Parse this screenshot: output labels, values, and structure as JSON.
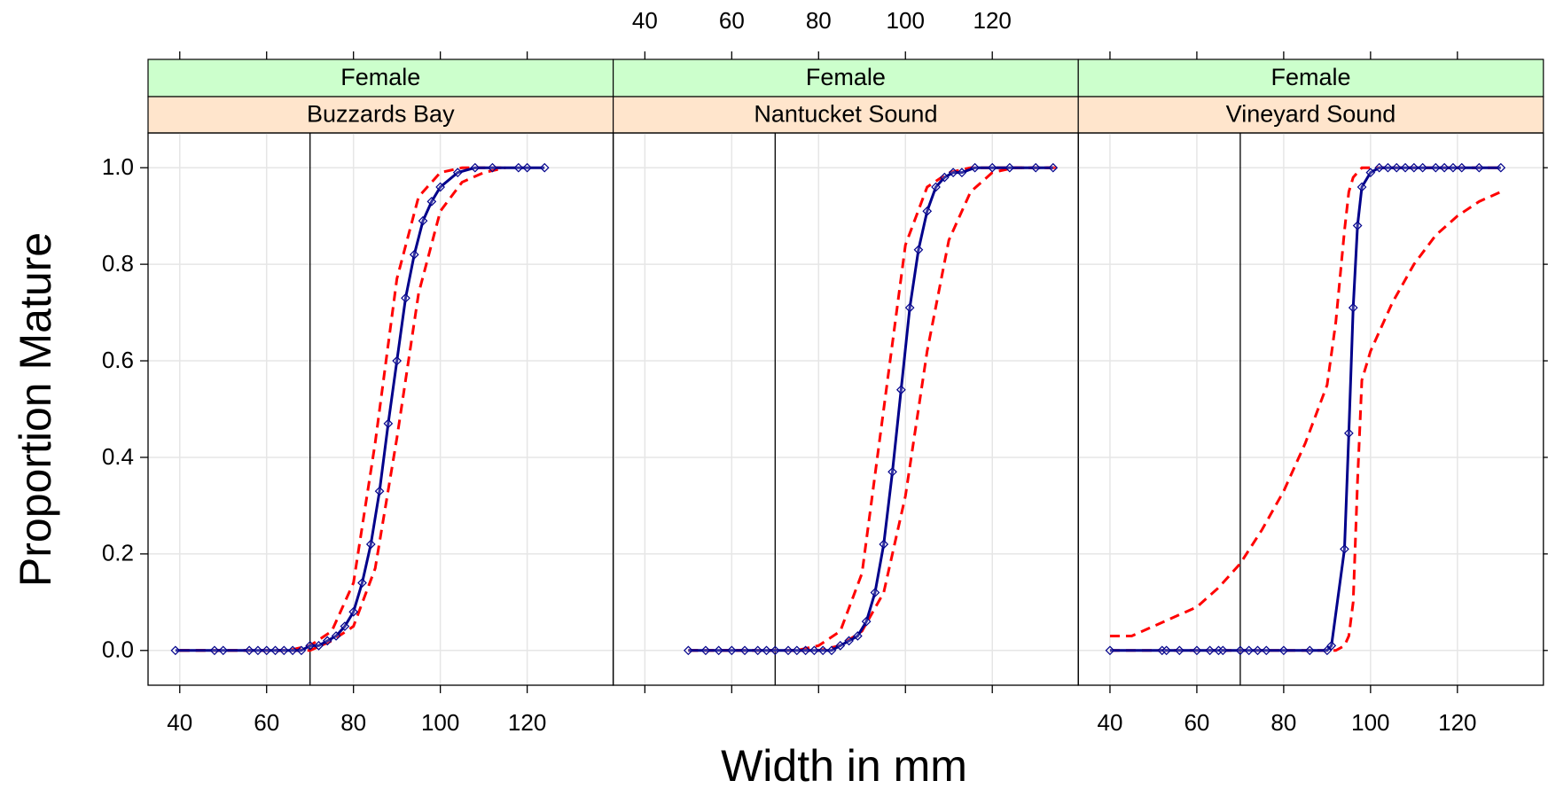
{
  "chart_data": {
    "type": "line",
    "xlabel": "Width in mm",
    "ylabel": "Proportion Mature",
    "xlim": [
      32.7,
      139.8
    ],
    "ylim": [
      -0.072,
      1.072
    ],
    "xticks": [
      40,
      60,
      80,
      100,
      120
    ],
    "yticks": [
      {
        "value": 0,
        "label": "0.0"
      },
      0.2,
      0.4,
      0.6,
      0.8,
      {
        "value": 1,
        "label": "1.0"
      }
    ],
    "grid": true,
    "reference_x": 70,
    "panels": [
      {
        "strips": [
          "Female",
          "Buzzards Bay"
        ],
        "series": [
          {
            "color": "#00008b",
            "marker": "diamond",
            "dashed": false,
            "x": [
              39,
              48,
              50,
              56,
              58,
              60,
              62,
              64,
              66,
              68,
              70,
              72,
              74,
              76,
              78,
              80,
              82,
              84,
              86,
              88,
              90,
              92,
              94,
              96,
              98,
              100,
              104,
              108,
              112,
              118,
              120,
              124
            ],
            "values": [
              0,
              0,
              0,
              0,
              0,
              0,
              0,
              0,
              0,
              0,
              0.01,
              0.01,
              0.02,
              0.03,
              0.05,
              0.08,
              0.14,
              0.22,
              0.33,
              0.47,
              0.6,
              0.73,
              0.82,
              0.89,
              0.93,
              0.96,
              0.99,
              1,
              1,
              1,
              1,
              1
            ]
          },
          {
            "color": "#ff0000",
            "dashed": true,
            "x": [
              40,
              45,
              50,
              55,
              60,
              65,
              70,
              75,
              80,
              85,
              90,
              95,
              100,
              105,
              110,
              115
            ],
            "values": [
              0,
              0,
              0,
              0,
              0,
              0,
              0,
              0.02,
              0.05,
              0.17,
              0.44,
              0.74,
              0.91,
              0.97,
              0.99,
              1
            ]
          },
          {
            "color": "#ff0000",
            "dashed": true,
            "x": [
              40,
              45,
              50,
              55,
              60,
              65,
              70,
              75,
              80,
              85,
              90,
              95,
              100,
              105,
              110,
              115
            ],
            "values": [
              0,
              0,
              0,
              0,
              0,
              0,
              0.01,
              0.04,
              0.14,
              0.43,
              0.77,
              0.94,
              0.99,
              1,
              1,
              1
            ]
          }
        ]
      },
      {
        "strips": [
          "Female",
          "Nantucket Sound"
        ],
        "series": [
          {
            "color": "#00008b",
            "marker": "diamond",
            "dashed": false,
            "x": [
              50,
              54,
              57,
              60,
              63,
              66,
              68,
              70,
              73,
              75,
              77,
              79,
              81,
              83,
              85,
              87,
              89,
              91,
              93,
              95,
              97,
              99,
              101,
              103,
              105,
              107,
              109,
              111,
              113,
              116,
              120,
              124,
              130,
              134
            ],
            "values": [
              0,
              0,
              0,
              0,
              0,
              0,
              0,
              0,
              0,
              0,
              0,
              0,
              0,
              0,
              0.01,
              0.02,
              0.03,
              0.06,
              0.12,
              0.22,
              0.37,
              0.54,
              0.71,
              0.83,
              0.91,
              0.96,
              0.98,
              0.99,
              0.99,
              1,
              1,
              1,
              1,
              1
            ]
          },
          {
            "color": "#ff0000",
            "dashed": true,
            "x": [
              50,
              55,
              60,
              65,
              70,
              75,
              80,
              85,
              90,
              95,
              100,
              105,
              110,
              115,
              120,
              125,
              130,
              135
            ],
            "values": [
              0,
              0,
              0,
              0,
              0,
              0,
              0.01,
              0.04,
              0.16,
              0.5,
              0.84,
              0.96,
              0.99,
              1,
              1,
              1,
              1,
              1
            ]
          },
          {
            "color": "#ff0000",
            "dashed": true,
            "x": [
              50,
              55,
              60,
              65,
              70,
              75,
              80,
              85,
              90,
              95,
              100,
              105,
              110,
              115,
              120,
              125,
              130,
              135
            ],
            "values": [
              0,
              0,
              0,
              0,
              0,
              0,
              0,
              0.01,
              0.04,
              0.12,
              0.32,
              0.62,
              0.85,
              0.95,
              0.99,
              1,
              1,
              1
            ]
          }
        ]
      },
      {
        "strips": [
          "Female",
          "Vineyard Sound"
        ],
        "series": [
          {
            "color": "#00008b",
            "marker": "diamond",
            "dashed": false,
            "x": [
              40,
              52,
              53,
              56,
              60,
              63,
              65,
              66,
              70,
              72,
              74,
              76,
              80,
              86,
              90,
              91,
              94,
              95,
              96,
              97,
              98,
              100,
              102,
              104,
              106,
              108,
              110,
              112,
              115,
              117,
              119,
              121,
              125,
              130
            ],
            "values": [
              0,
              0,
              0,
              0,
              0,
              0,
              0,
              0,
              0,
              0,
              0,
              0,
              0,
              0,
              0,
              0.01,
              0.21,
              0.45,
              0.71,
              0.88,
              0.96,
              0.99,
              1,
              1,
              1,
              1,
              1,
              1,
              1,
              1,
              1,
              1,
              1,
              1
            ]
          },
          {
            "color": "#ff0000",
            "dashed": true,
            "x": [
              40,
              45,
              50,
              55,
              60,
              65,
              70,
              75,
              80,
              85,
              90,
              92,
              94,
              95,
              96,
              97,
              98,
              100,
              105,
              110,
              115,
              120,
              125,
              130
            ],
            "values": [
              0.03,
              0.03,
              0.05,
              0.07,
              0.09,
              0.13,
              0.18,
              0.25,
              0.33,
              0.43,
              0.55,
              0.68,
              0.87,
              0.95,
              0.98,
              0.99,
              1,
              1,
              1,
              1,
              1,
              1,
              1,
              1
            ]
          },
          {
            "color": "#ff0000",
            "dashed": true,
            "x": [
              40,
              45,
              50,
              55,
              60,
              65,
              70,
              75,
              80,
              85,
              90,
              92,
              94,
              95,
              96,
              97,
              98,
              100,
              105,
              110,
              115,
              120,
              125,
              130
            ],
            "values": [
              0,
              0,
              0,
              0,
              0,
              0,
              0,
              0,
              0,
              0,
              0,
              0,
              0.01,
              0.03,
              0.1,
              0.35,
              0.56,
              0.62,
              0.72,
              0.8,
              0.86,
              0.9,
              0.93,
              0.95
            ]
          }
        ]
      }
    ]
  }
}
